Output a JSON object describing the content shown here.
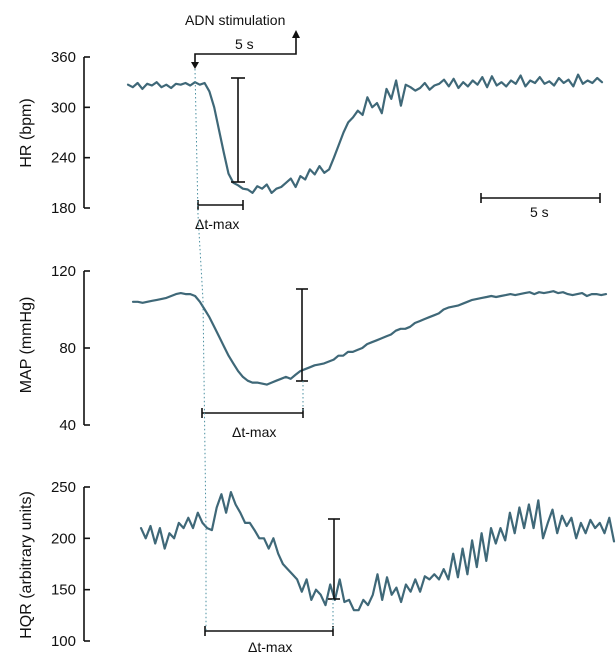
{
  "colors": {
    "trace": "#3f6878",
    "axis": "#111111",
    "guide": "#4a8fa0"
  },
  "stimulus": {
    "label": "ADN stimulation",
    "duration_label": "5 s"
  },
  "scale_bar": {
    "label": "5 s"
  },
  "chart_data": [
    {
      "type": "line",
      "id": "hr",
      "ylabel": "HR (bpm)",
      "ylim": [
        180,
        360
      ],
      "yticks": [
        180,
        240,
        300,
        360
      ],
      "annotation": "Δt-max",
      "series": [
        {
          "y": [
            327,
            324,
            329,
            322,
            328,
            326,
            330,
            324,
            327,
            323,
            328,
            327,
            329,
            326,
            330,
            327,
            329,
            319,
            300,
            273,
            246,
            221,
            210,
            207,
            203,
            202,
            198,
            206,
            203,
            208,
            198,
            203,
            205,
            210,
            215,
            205,
            218,
            214,
            226,
            220,
            230,
            222,
            226,
            240,
            255,
            270,
            282,
            288,
            296,
            291,
            312,
            300,
            305,
            293,
            322,
            310,
            332,
            302,
            327,
            324,
            320,
            323,
            329,
            321,
            326,
            328,
            333,
            325,
            334,
            323,
            330,
            325,
            332,
            327,
            336,
            324,
            337,
            326,
            330,
            325,
            332,
            328,
            338,
            325,
            332,
            329,
            336,
            328,
            331,
            326,
            335,
            329,
            333,
            325,
            339,
            328,
            332,
            329,
            335,
            330
          ]
        }
      ]
    },
    {
      "type": "line",
      "id": "map",
      "ylabel": "MAP (mmHg)",
      "ylim": [
        40,
        120
      ],
      "yticks": [
        40,
        80,
        120
      ],
      "annotation": "Δt-max",
      "series": [
        {
          "y": [
            104,
            104,
            103.5,
            104,
            104.5,
            105,
            105.5,
            106,
            107,
            108,
            108.5,
            108,
            108,
            107,
            104,
            100,
            96,
            91,
            86,
            81,
            76,
            72,
            68,
            65,
            63,
            62,
            62,
            61.5,
            61,
            62,
            63,
            64,
            65,
            64,
            66,
            68,
            69,
            70,
            71,
            71.5,
            72,
            73,
            74,
            76,
            76,
            78,
            78,
            79,
            80,
            82,
            83,
            84,
            85,
            86,
            87,
            89,
            90,
            90,
            91,
            93,
            94,
            95,
            96,
            97,
            98,
            100,
            101,
            101.5,
            102,
            103,
            104,
            105,
            105.5,
            106,
            106.5,
            107,
            106.5,
            107,
            107.5,
            108,
            107.5,
            108,
            108.5,
            109,
            108,
            109,
            108.5,
            109,
            109.5,
            108.5,
            109,
            108,
            107.5,
            108,
            108.5,
            107,
            108,
            108,
            107.5,
            108
          ]
        }
      ]
    },
    {
      "type": "line",
      "id": "hqr",
      "ylabel": "HQR (arbitrary units)",
      "ylim": [
        100,
        250
      ],
      "yticks": [
        100,
        150,
        200,
        250
      ],
      "annotation": "Δt-max",
      "series": [
        {
          "y": [
            210,
            200,
            212,
            195,
            210,
            190,
            205,
            200,
            215,
            210,
            220,
            210,
            225,
            215,
            210,
            208,
            230,
            243,
            225,
            245,
            233,
            225,
            215,
            215,
            208,
            200,
            200,
            190,
            200,
            185,
            175,
            170,
            165,
            160,
            148,
            160,
            140,
            150,
            145,
            135,
            155,
            140,
            160,
            138,
            140,
            130,
            130,
            140,
            135,
            145,
            165,
            140,
            162,
            145,
            152,
            138,
            155,
            148,
            160,
            148,
            163,
            160,
            165,
            160,
            170,
            160,
            185,
            162,
            190,
            165,
            198,
            172,
            205,
            178,
            210,
            195,
            210,
            198,
            225,
            205,
            230,
            210,
            233,
            210,
            237,
            200,
            215,
            228,
            205,
            222,
            212,
            220,
            200,
            215,
            205,
            218,
            210,
            215,
            205,
            220,
            197
          ]
        }
      ]
    }
  ]
}
